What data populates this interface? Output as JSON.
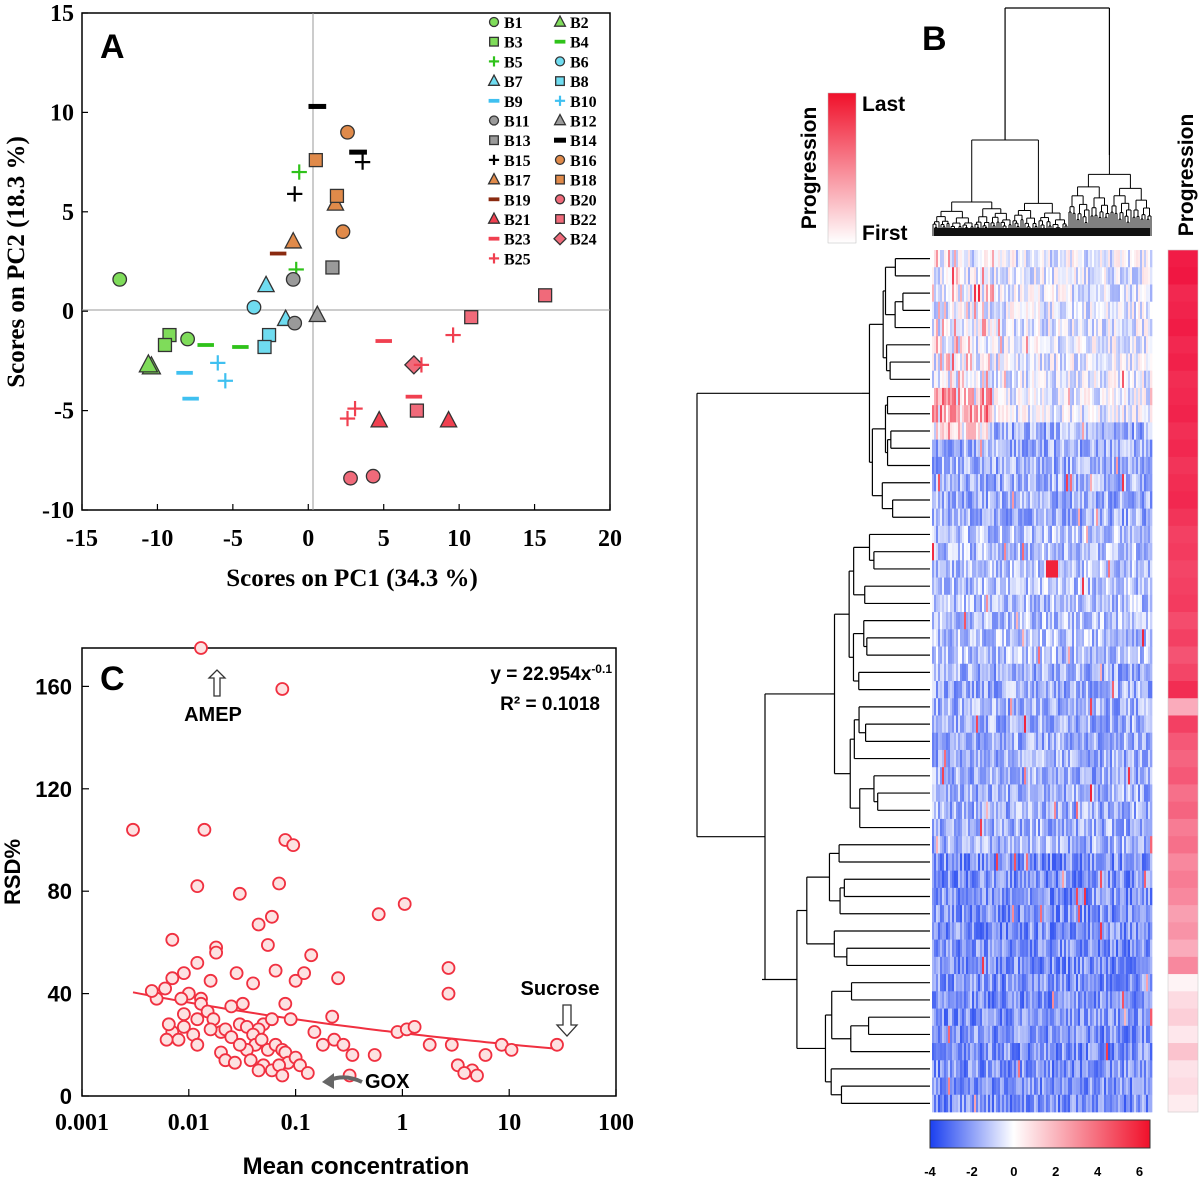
{
  "panels": {
    "a": {
      "letter": "A"
    },
    "b": {
      "letter": "B"
    },
    "c": {
      "letter": "C"
    }
  },
  "chart_data": [
    {
      "id": "A",
      "type": "scatter",
      "title": "",
      "xlabel": "Scores on PC1 (34.3 %)",
      "ylabel": "Scores on PC2 (18.3 %)",
      "xlim": [
        -15,
        20
      ],
      "ylim": [
        -10,
        15
      ],
      "xticks": [
        "-15",
        "-10",
        "-5",
        "0",
        "5",
        "10",
        "15",
        "20"
      ],
      "yticks": [
        "-10",
        "-5",
        "0",
        "5",
        "10",
        "15"
      ],
      "legend": [
        {
          "name": "B1",
          "marker": "circle",
          "color": "#7fdc5a"
        },
        {
          "name": "B2",
          "marker": "triangle",
          "color": "#7fdc5a"
        },
        {
          "name": "B3",
          "marker": "square",
          "color": "#7fdc5a"
        },
        {
          "name": "B4",
          "marker": "dash",
          "color": "#2fc21a"
        },
        {
          "name": "B5",
          "marker": "plus",
          "color": "#2fc21a"
        },
        {
          "name": "B6",
          "marker": "circle",
          "color": "#6fdcf0"
        },
        {
          "name": "B7",
          "marker": "triangle",
          "color": "#6fdcf0"
        },
        {
          "name": "B8",
          "marker": "square",
          "color": "#6fdcf0"
        },
        {
          "name": "B9",
          "marker": "dash",
          "color": "#3fc0f0"
        },
        {
          "name": "B10",
          "marker": "plus",
          "color": "#3fc0f0"
        },
        {
          "name": "B11",
          "marker": "circle",
          "color": "#9a9a9a"
        },
        {
          "name": "B12",
          "marker": "triangle",
          "color": "#9a9a9a"
        },
        {
          "name": "B13",
          "marker": "square",
          "color": "#9a9a9a"
        },
        {
          "name": "B14",
          "marker": "dash",
          "color": "#000000"
        },
        {
          "name": "B15",
          "marker": "plus",
          "color": "#000000"
        },
        {
          "name": "B16",
          "marker": "circle",
          "color": "#e08a4a"
        },
        {
          "name": "B17",
          "marker": "triangle",
          "color": "#e08a4a"
        },
        {
          "name": "B18",
          "marker": "square",
          "color": "#e08a4a"
        },
        {
          "name": "B19",
          "marker": "dash",
          "color": "#8a2a10"
        },
        {
          "name": "B20",
          "marker": "circle",
          "color": "#f06a7a"
        },
        {
          "name": "B21",
          "marker": "triangle",
          "color": "#f04050"
        },
        {
          "name": "B22",
          "marker": "square",
          "color": "#f06a7a"
        },
        {
          "name": "B23",
          "marker": "dash",
          "color": "#f04050"
        },
        {
          "name": "B24",
          "marker": "diamond",
          "color": "#f06a7a"
        },
        {
          "name": "B25",
          "marker": "plus",
          "color": "#f04050"
        }
      ],
      "points": [
        {
          "s": "B1",
          "x": -12.5,
          "y": 1.6
        },
        {
          "s": "B1",
          "x": -8,
          "y": -1.4
        },
        {
          "s": "B2",
          "x": -10.4,
          "y": -2.8
        },
        {
          "s": "B2",
          "x": -10.6,
          "y": -2.7
        },
        {
          "s": "B3",
          "x": -9.2,
          "y": -1.2
        },
        {
          "s": "B3",
          "x": -9.5,
          "y": -1.7
        },
        {
          "s": "B4",
          "x": -6.8,
          "y": -1.7
        },
        {
          "s": "B4",
          "x": -4.5,
          "y": -1.8
        },
        {
          "s": "B5",
          "x": -0.6,
          "y": 7
        },
        {
          "s": "B5",
          "x": -0.8,
          "y": 2.1
        },
        {
          "s": "B6",
          "x": -3.6,
          "y": 0.2
        },
        {
          "s": "B7",
          "x": -2.8,
          "y": 1.3
        },
        {
          "s": "B7",
          "x": -1.5,
          "y": -0.4
        },
        {
          "s": "B8",
          "x": -2.6,
          "y": -1.2
        },
        {
          "s": "B8",
          "x": -2.9,
          "y": -1.8
        },
        {
          "s": "B9",
          "x": -8.2,
          "y": -3.1
        },
        {
          "s": "B9",
          "x": -7.8,
          "y": -4.4
        },
        {
          "s": "B10",
          "x": -6,
          "y": -2.6
        },
        {
          "s": "B10",
          "x": -5.5,
          "y": -3.5
        },
        {
          "s": "B11",
          "x": -1.0,
          "y": 1.6
        },
        {
          "s": "B11",
          "x": -0.9,
          "y": -0.6
        },
        {
          "s": "B12",
          "x": 0.6,
          "y": -0.2
        },
        {
          "s": "B13",
          "x": 1.6,
          "y": 2.2
        },
        {
          "s": "B14",
          "x": 0.6,
          "y": 10.3
        },
        {
          "s": "B14",
          "x": 3.3,
          "y": 8
        },
        {
          "s": "B15",
          "x": -0.9,
          "y": 5.9
        },
        {
          "s": "B15",
          "x": 3.6,
          "y": 7.5
        },
        {
          "s": "B16",
          "x": 2.6,
          "y": 9
        },
        {
          "s": "B16",
          "x": 2.3,
          "y": 4
        },
        {
          "s": "B17",
          "x": 1.8,
          "y": 5.4
        },
        {
          "s": "B17",
          "x": -1.0,
          "y": 3.5
        },
        {
          "s": "B18",
          "x": 0.5,
          "y": 7.6
        },
        {
          "s": "B18",
          "x": 1.9,
          "y": 5.8
        },
        {
          "s": "B19",
          "x": -2.0,
          "y": 2.9
        },
        {
          "s": "B20",
          "x": 2.8,
          "y": -8.4
        },
        {
          "s": "B20",
          "x": 4.3,
          "y": -8.3
        },
        {
          "s": "B21",
          "x": 4.7,
          "y": -5.5
        },
        {
          "s": "B21",
          "x": 9.3,
          "y": -5.5
        },
        {
          "s": "B22",
          "x": 10.8,
          "y": -0.3
        },
        {
          "s": "B22",
          "x": 15.7,
          "y": 0.8
        },
        {
          "s": "B22",
          "x": 7.2,
          "y": -5
        },
        {
          "s": "B23",
          "x": 5.0,
          "y": -1.5
        },
        {
          "s": "B23",
          "x": 7.0,
          "y": -4.3
        },
        {
          "s": "B24",
          "x": 7.0,
          "y": -2.7
        },
        {
          "s": "B25",
          "x": 2.6,
          "y": -5.4
        },
        {
          "s": "B25",
          "x": 3.1,
          "y": -4.9
        },
        {
          "s": "B25",
          "x": 9.6,
          "y": -1.2
        },
        {
          "s": "B25",
          "x": 7.5,
          "y": -2.7
        }
      ]
    },
    {
      "id": "B",
      "type": "heatmap",
      "title": "",
      "row_label": "Progression",
      "legend_label": "Progression",
      "legend_top": "Last",
      "legend_bottom": "First",
      "colorbar_ticks": [
        "-4",
        "-2",
        "0",
        "2",
        "4",
        "6"
      ],
      "colorbar_range": [
        -4,
        6.5
      ],
      "rows": 50,
      "cols": 110,
      "progression": [
        0.95,
        0.97,
        0.9,
        0.92,
        0.95,
        0.9,
        0.93,
        0.88,
        0.9,
        0.92,
        0.87,
        0.9,
        0.85,
        0.88,
        0.9,
        0.85,
        0.8,
        0.82,
        0.78,
        0.8,
        0.82,
        0.75,
        0.8,
        0.72,
        0.78,
        0.88,
        0.35,
        0.8,
        0.7,
        0.65,
        0.7,
        0.6,
        0.65,
        0.55,
        0.6,
        0.5,
        0.55,
        0.5,
        0.4,
        0.45,
        0.35,
        0.5,
        0.05,
        0.15,
        0.2,
        0.1,
        0.25,
        0.12,
        0.15,
        0.08
      ]
    },
    {
      "id": "C",
      "type": "scatter",
      "title": "",
      "xlabel": "Mean concentration",
      "ylabel": "RSD%",
      "xscale": "log",
      "xlim": [
        0.001,
        100
      ],
      "ylim": [
        0,
        175
      ],
      "xticks": [
        "0.001",
        "0.01",
        "0.1",
        "1",
        "10",
        "100"
      ],
      "yticks": [
        "0",
        "40",
        "80",
        "120",
        "160"
      ],
      "equation": "y = 22.954x",
      "equation_exp": "-0.1",
      "r2": "R² = 0.1018",
      "annotations": [
        {
          "label": "AMEP",
          "x": 0.013,
          "y": 175
        },
        {
          "label": "Sucrose",
          "x": 28,
          "y": 20
        },
        {
          "label": "GOX",
          "x": 0.13,
          "y": 8
        }
      ],
      "fit": {
        "a": 22.954,
        "b": -0.1
      },
      "points": [
        [
          0.013,
          175
        ],
        [
          0.075,
          159
        ],
        [
          0.003,
          104
        ],
        [
          0.014,
          104
        ],
        [
          0.08,
          100
        ],
        [
          0.095,
          98
        ],
        [
          0.012,
          82
        ],
        [
          0.07,
          83
        ],
        [
          0.03,
          79
        ],
        [
          0.045,
          67
        ],
        [
          0.06,
          70
        ],
        [
          0.6,
          71
        ],
        [
          1.05,
          75
        ],
        [
          0.018,
          58
        ],
        [
          0.018,
          56
        ],
        [
          0.007,
          61
        ],
        [
          0.012,
          52
        ],
        [
          0.028,
          48
        ],
        [
          0.055,
          59
        ],
        [
          0.065,
          49
        ],
        [
          0.1,
          45
        ],
        [
          0.12,
          48
        ],
        [
          0.14,
          55
        ],
        [
          0.25,
          46
        ],
        [
          0.04,
          44
        ],
        [
          0.016,
          45
        ],
        [
          0.01,
          40
        ],
        [
          0.009,
          48
        ],
        [
          0.007,
          46
        ],
        [
          0.0085,
          38
        ],
        [
          0.005,
          38
        ],
        [
          0.006,
          42
        ],
        [
          0.0045,
          41
        ],
        [
          0.013,
          38
        ],
        [
          0.025,
          35
        ],
        [
          0.032,
          36
        ],
        [
          0.05,
          28
        ],
        [
          0.045,
          26
        ],
        [
          0.06,
          30
        ],
        [
          0.08,
          36
        ],
        [
          0.09,
          30
        ],
        [
          0.013,
          36
        ],
        [
          0.015,
          33
        ],
        [
          0.017,
          30
        ],
        [
          0.02,
          25
        ],
        [
          0.022,
          26
        ],
        [
          0.025,
          23
        ],
        [
          0.03,
          28
        ],
        [
          0.035,
          27
        ],
        [
          0.04,
          24
        ],
        [
          0.042,
          20
        ],
        [
          0.048,
          22
        ],
        [
          0.055,
          18
        ],
        [
          0.065,
          20
        ],
        [
          0.075,
          18
        ],
        [
          0.08,
          17
        ],
        [
          0.085,
          13
        ],
        [
          0.1,
          15
        ],
        [
          0.11,
          12
        ],
        [
          0.13,
          9
        ],
        [
          0.15,
          25
        ],
        [
          0.18,
          20
        ],
        [
          0.22,
          31
        ],
        [
          0.23,
          22
        ],
        [
          0.28,
          20
        ],
        [
          0.34,
          16
        ],
        [
          0.55,
          16
        ],
        [
          0.9,
          25
        ],
        [
          1.1,
          26
        ],
        [
          1.3,
          27
        ],
        [
          1.8,
          20
        ],
        [
          2.7,
          50
        ],
        [
          2.7,
          40
        ],
        [
          2.9,
          20
        ],
        [
          3.3,
          12
        ],
        [
          4.5,
          10
        ],
        [
          5,
          8
        ],
        [
          6,
          16
        ],
        [
          8.5,
          20
        ],
        [
          10.5,
          18
        ],
        [
          28,
          20
        ],
        [
          0.007,
          25
        ],
        [
          0.008,
          22
        ],
        [
          0.009,
          27
        ],
        [
          0.011,
          24
        ],
        [
          0.012,
          20
        ],
        [
          0.02,
          17
        ],
        [
          0.022,
          14
        ],
        [
          0.027,
          13
        ],
        [
          0.035,
          18
        ],
        [
          0.038,
          14
        ],
        [
          0.05,
          12
        ],
        [
          0.06,
          10
        ],
        [
          0.07,
          12
        ],
        [
          0.075,
          8
        ],
        [
          0.012,
          30
        ],
        [
          0.016,
          26
        ],
        [
          0.009,
          32
        ],
        [
          0.0065,
          28
        ],
        [
          0.0062,
          22
        ],
        [
          0.03,
          20
        ],
        [
          0.32,
          8
        ],
        [
          0.045,
          10
        ],
        [
          3.8,
          9
        ]
      ]
    }
  ]
}
